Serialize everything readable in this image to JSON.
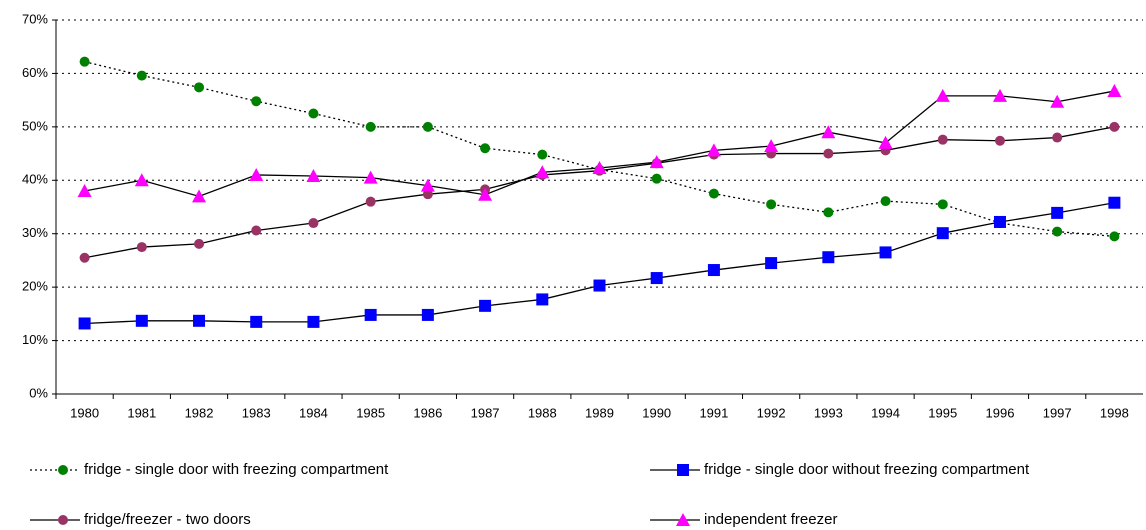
{
  "chart_data": {
    "type": "line",
    "categories": [
      "1980",
      "1981",
      "1982",
      "1983",
      "1984",
      "1985",
      "1986",
      "1987",
      "1988",
      "1989",
      "1990",
      "1991",
      "1992",
      "1993",
      "1994",
      "1995",
      "1996",
      "1997",
      "1998"
    ],
    "series": [
      {
        "name": "fridge - single door with freezing compartment",
        "color": "#008000",
        "line_color": "#000000",
        "dash": "dotted",
        "marker": "circle",
        "values": [
          62.2,
          59.6,
          57.4,
          54.8,
          52.5,
          50.0,
          50.0,
          46.0,
          44.8,
          42.0,
          40.3,
          37.5,
          35.5,
          34.0,
          36.1,
          35.5,
          32.0,
          30.4,
          29.5
        ]
      },
      {
        "name": "fridge - single door without freezing compartment",
        "color": "#0000ff",
        "line_color": "#000000",
        "dash": "solid",
        "marker": "square",
        "values": [
          13.2,
          13.7,
          13.7,
          13.5,
          13.5,
          14.8,
          14.8,
          16.5,
          17.7,
          20.3,
          21.7,
          23.2,
          24.5,
          25.6,
          26.5,
          30.1,
          32.2,
          33.9,
          35.8
        ]
      },
      {
        "name": "fridge/freezer - two doors",
        "color": "#993366",
        "line_color": "#000000",
        "dash": "solid",
        "marker": "circle",
        "values": [
          25.5,
          27.5,
          28.1,
          30.6,
          32.0,
          36.0,
          37.4,
          38.3,
          41.0,
          41.8,
          43.2,
          44.8,
          45.0,
          45.0,
          45.6,
          47.6,
          47.4,
          48.0,
          50.0
        ]
      },
      {
        "name": "independent freezer",
        "color": "#ff00ff",
        "line_color": "#000000",
        "dash": "solid",
        "marker": "triangle",
        "values": [
          38.0,
          40.0,
          37.0,
          41.0,
          40.8,
          40.5,
          39.0,
          37.3,
          41.5,
          42.3,
          43.4,
          45.6,
          46.4,
          49.0,
          47.0,
          55.8,
          55.8,
          54.7,
          56.7
        ]
      }
    ],
    "ylim": [
      0,
      70
    ],
    "yticks": [
      {
        "value": 0,
        "label": "0%"
      },
      {
        "value": 10,
        "label": "10%"
      },
      {
        "value": 20,
        "label": "20%"
      },
      {
        "value": 30,
        "label": "30%"
      },
      {
        "value": 40,
        "label": "40%"
      },
      {
        "value": 50,
        "label": "50%"
      },
      {
        "value": 60,
        "label": "60%"
      },
      {
        "value": 70,
        "label": "70%"
      }
    ],
    "grid": true
  }
}
